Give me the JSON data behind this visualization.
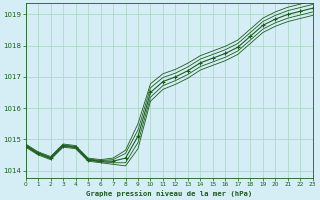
{
  "title": "Graphe pression niveau de la mer (hPa)",
  "background_color": "#d5eef5",
  "grid_color": "#a8d4c0",
  "line_color": "#1a5c1a",
  "xlim": [
    0,
    23
  ],
  "ylim": [
    1013.75,
    1019.35
  ],
  "yticks": [
    1014,
    1015,
    1016,
    1017,
    1018,
    1019
  ],
  "xticks": [
    0,
    1,
    2,
    3,
    4,
    5,
    6,
    7,
    8,
    9,
    10,
    11,
    12,
    13,
    14,
    15,
    16,
    17,
    18,
    19,
    20,
    21,
    22,
    23
  ],
  "hours": [
    0,
    1,
    2,
    3,
    4,
    5,
    6,
    7,
    8,
    9,
    10,
    11,
    12,
    13,
    14,
    15,
    16,
    17,
    18,
    19,
    20,
    21,
    22,
    23
  ],
  "pressure_main": [
    1014.8,
    1014.55,
    1014.4,
    1014.8,
    1014.75,
    1014.35,
    1014.3,
    1014.3,
    1014.4,
    1015.1,
    1016.5,
    1016.85,
    1017.0,
    1017.2,
    1017.45,
    1017.6,
    1017.75,
    1017.95,
    1018.3,
    1018.65,
    1018.85,
    1019.0,
    1019.1,
    1019.2
  ],
  "pressure_upper1": [
    1014.82,
    1014.57,
    1014.42,
    1014.82,
    1014.77,
    1014.37,
    1014.32,
    1014.35,
    1014.55,
    1015.3,
    1016.65,
    1016.98,
    1017.12,
    1017.32,
    1017.57,
    1017.72,
    1017.87,
    1018.07,
    1018.42,
    1018.77,
    1018.97,
    1019.12,
    1019.22,
    1019.32
  ],
  "pressure_lower1": [
    1014.78,
    1014.53,
    1014.38,
    1014.78,
    1014.73,
    1014.33,
    1014.28,
    1014.25,
    1014.25,
    1014.9,
    1016.35,
    1016.72,
    1016.88,
    1017.08,
    1017.33,
    1017.48,
    1017.63,
    1017.83,
    1018.18,
    1018.53,
    1018.73,
    1018.88,
    1018.98,
    1019.08
  ],
  "pressure_upper2": [
    1014.85,
    1014.6,
    1014.45,
    1014.85,
    1014.8,
    1014.4,
    1014.35,
    1014.4,
    1014.65,
    1015.5,
    1016.78,
    1017.1,
    1017.24,
    1017.44,
    1017.68,
    1017.83,
    1017.98,
    1018.18,
    1018.53,
    1018.88,
    1019.08,
    1019.23,
    1019.33,
    1019.43
  ],
  "pressure_lower2": [
    1014.75,
    1014.5,
    1014.35,
    1014.75,
    1014.7,
    1014.3,
    1014.25,
    1014.2,
    1014.15,
    1014.7,
    1016.22,
    1016.6,
    1016.76,
    1016.96,
    1017.22,
    1017.37,
    1017.52,
    1017.72,
    1018.07,
    1018.42,
    1018.62,
    1018.77,
    1018.87,
    1018.97
  ]
}
